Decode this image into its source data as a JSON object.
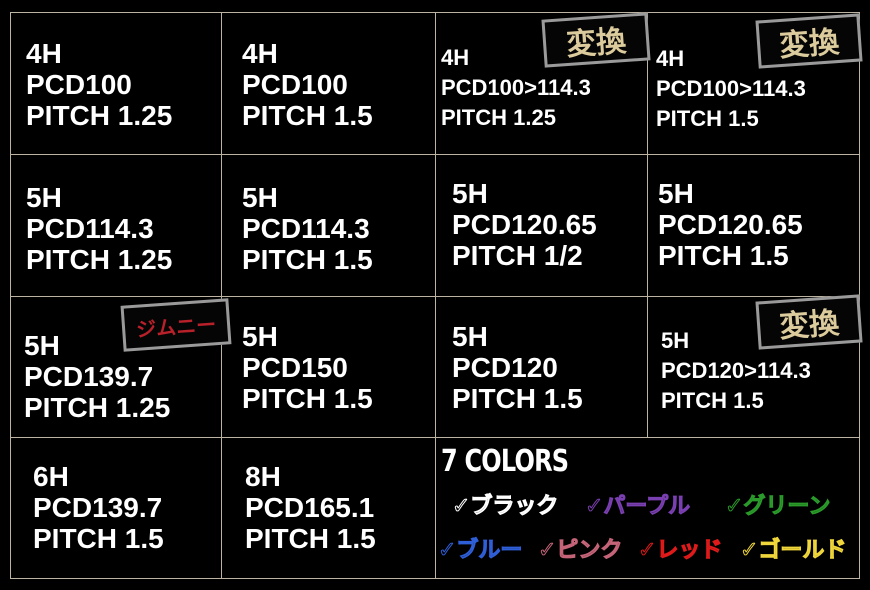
{
  "cells": [
    {
      "lines": [
        "4H",
        "PCD100",
        "PITCH 1.25"
      ]
    },
    {
      "lines": [
        "4H",
        "PCD100",
        "PITCH 1.5"
      ]
    },
    {
      "lines": [
        "4H",
        "PCD100>114.3",
        "PITCH 1.25"
      ],
      "badge": "変換"
    },
    {
      "lines": [
        "4H",
        "PCD100>114.3",
        "PITCH 1.5"
      ],
      "badge": "変換"
    },
    {
      "lines": [
        "5H",
        "PCD114.3",
        "PITCH 1.25"
      ]
    },
    {
      "lines": [
        "5H",
        "PCD114.3",
        "PITCH 1.5"
      ]
    },
    {
      "lines": [
        "5H",
        "PCD120.65",
        "PITCH 1/2"
      ]
    },
    {
      "lines": [
        "5H",
        "PCD120.65",
        "PITCH 1.5"
      ]
    },
    {
      "lines": [
        "5H",
        "PCD139.7",
        "PITCH 1.25"
      ],
      "badge": "ジムニー"
    },
    {
      "lines": [
        "5H",
        "PCD150",
        "PITCH 1.5"
      ]
    },
    {
      "lines": [
        "5H",
        "PCD120",
        "PITCH 1.5"
      ]
    },
    {
      "lines": [
        "5H",
        "PCD120>114.3",
        "PITCH 1.5"
      ],
      "badge": "変換"
    },
    {
      "lines": [
        "6H",
        "PCD139.7",
        "PITCH 1.5"
      ]
    },
    {
      "lines": [
        "8H",
        "PCD165.1",
        "PITCH 1.5"
      ]
    }
  ],
  "colors": {
    "title": "7 COLORS",
    "items": [
      {
        "label": "✓ブラック",
        "color": "#ffffff"
      },
      {
        "label": "✓パープル",
        "color": "#7a3fb0"
      },
      {
        "label": "✓グリーン",
        "color": "#2a9a2a"
      },
      {
        "label": "✓ブルー",
        "color": "#2f5fd8"
      },
      {
        "label": "✓ピンク",
        "color": "#c56478"
      },
      {
        "label": "✓レッド",
        "color": "#e01a1a"
      },
      {
        "label": "✓ゴールド",
        "color": "#f0d63a"
      }
    ]
  },
  "badge_colors": {
    "convert": "#dccb9c",
    "jimny": "#b8202a",
    "border": "#9a9a9a"
  }
}
